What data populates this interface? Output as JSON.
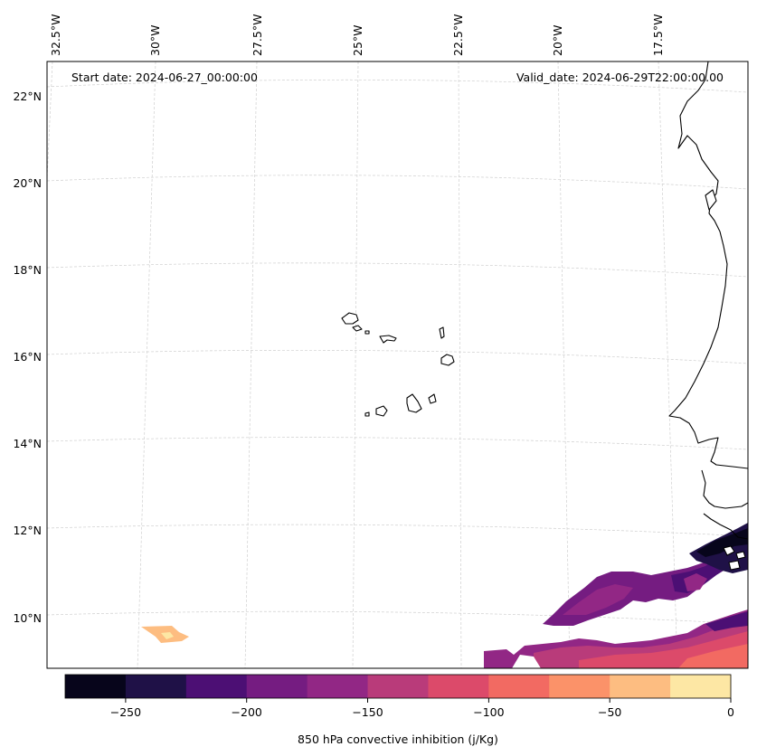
{
  "header": {
    "start_date": "Start date: 2024-06-27_00:00:00",
    "valid_date": "Valid_date: 2024-06-29T22:00:00.00"
  },
  "longitude_labels": [
    "32.5°W",
    "30°W",
    "27.5°W",
    "25°W",
    "22.5°W",
    "20°W",
    "17.5°W"
  ],
  "latitude_labels": [
    "22°N",
    "20°N",
    "18°N",
    "16°N",
    "14°N",
    "12°N",
    "10°N"
  ],
  "colorbar": {
    "label": "850 hPa convective inhibition (j/Kg)",
    "ticks": [
      "−250",
      "−200",
      "−150",
      "−100",
      "−50",
      "0"
    ],
    "colors": [
      "#07051b",
      "#1f1147",
      "#4c0f74",
      "#751c81",
      "#922785",
      "#b93b7a",
      "#dc4a6a",
      "#f26a62",
      "#fb9269",
      "#fdbd81",
      "#fde7a4"
    ]
  }
}
